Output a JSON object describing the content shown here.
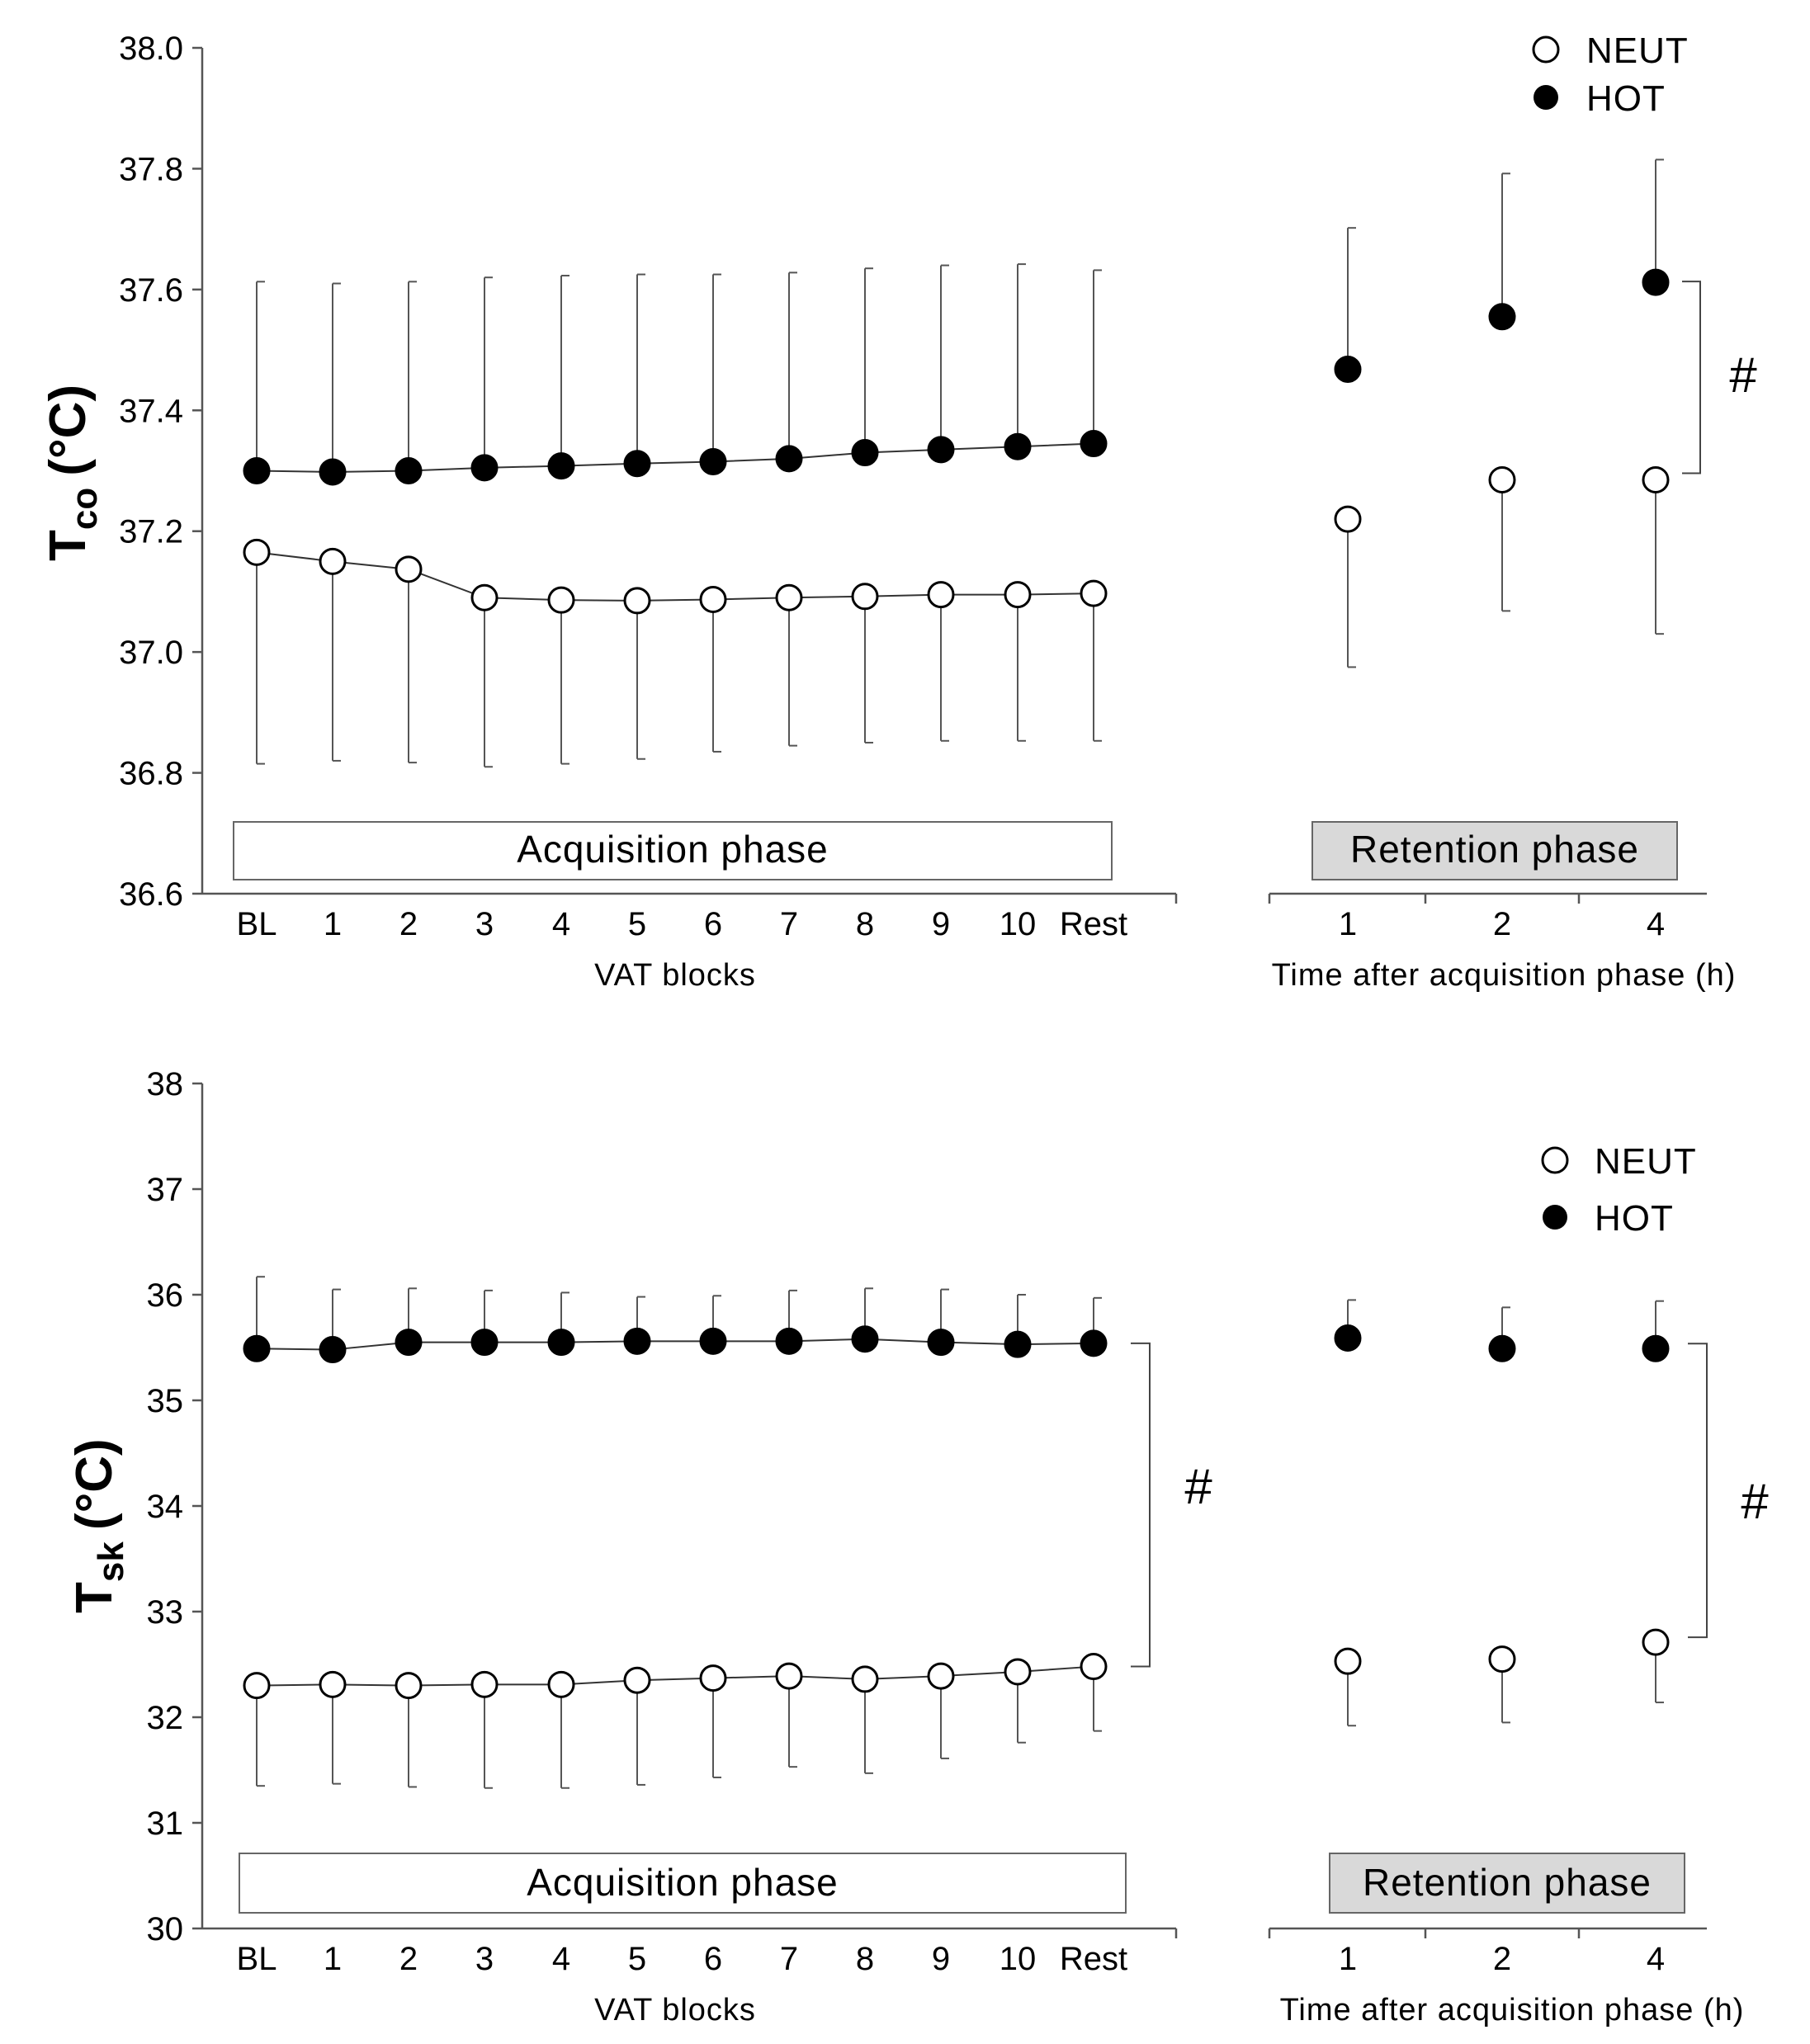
{
  "legend": {
    "neut": "NEUT",
    "hot": "HOT"
  },
  "phases": {
    "acquisition": "Acquisition phase",
    "retention": "Retention phase"
  },
  "colors": {
    "neut_fill": "#ffffff",
    "hot_fill": "#000000",
    "retention_box": "#d9d9d9"
  },
  "chart_data": [
    {
      "type": "line",
      "title": "",
      "ylabel_main": "T",
      "ylabel_sub": "co",
      "ylabel_unit": "(°C)",
      "ylim": [
        36.6,
        38.0
      ],
      "yticks": [
        "36.6",
        "36.8",
        "37.0",
        "37.2",
        "37.4",
        "37.6",
        "37.8",
        "38.0"
      ],
      "significance": "#",
      "acquisition": {
        "xlabel": "VAT blocks",
        "categories": [
          "BL",
          "1",
          "2",
          "3",
          "4",
          "5",
          "6",
          "7",
          "8",
          "9",
          "10",
          "Rest"
        ],
        "series": [
          {
            "name": "NEUT",
            "values": [
              37.165,
              37.15,
              37.137,
              37.09,
              37.086,
              37.085,
              37.087,
              37.09,
              37.092,
              37.095,
              37.095,
              37.097
            ],
            "error_lower": [
              36.815,
              36.82,
              36.817,
              36.81,
              36.815,
              36.823,
              36.835,
              36.845,
              36.85,
              36.853,
              36.853,
              36.853
            ]
          },
          {
            "name": "HOT",
            "values": [
              37.3,
              37.298,
              37.3,
              37.305,
              37.308,
              37.312,
              37.315,
              37.32,
              37.33,
              37.335,
              37.34,
              37.345
            ],
            "error_upper": [
              37.613,
              37.61,
              37.613,
              37.62,
              37.623,
              37.625,
              37.625,
              37.628,
              37.635,
              37.64,
              37.642,
              37.632
            ]
          }
        ]
      },
      "retention": {
        "xlabel": "Time after acquisition phase (h)",
        "categories": [
          "1",
          "2",
          "4"
        ],
        "series": [
          {
            "name": "NEUT",
            "values": [
              37.22,
              37.285,
              37.285
            ],
            "error_lower": [
              36.975,
              37.068,
              37.03
            ]
          },
          {
            "name": "HOT",
            "values": [
              37.468,
              37.555,
              37.612
            ],
            "error_upper": [
              37.702,
              37.792,
              37.815
            ]
          }
        ]
      }
    },
    {
      "type": "line",
      "title": "",
      "ylabel_main": "T",
      "ylabel_sub": "sk",
      "ylabel_unit": "(°C)",
      "ylim": [
        30,
        38
      ],
      "yticks": [
        "30",
        "31",
        "32",
        "33",
        "34",
        "35",
        "36",
        "37",
        "38"
      ],
      "significance_acquisition": "#",
      "significance_retention": "#",
      "acquisition": {
        "xlabel": "VAT blocks",
        "categories": [
          "BL",
          "1",
          "2",
          "3",
          "4",
          "5",
          "6",
          "7",
          "8",
          "9",
          "10",
          "Rest"
        ],
        "series": [
          {
            "name": "NEUT",
            "values": [
              32.3,
              32.31,
              32.3,
              32.31,
              32.31,
              32.35,
              32.37,
              32.39,
              32.36,
              32.39,
              32.43,
              32.48
            ],
            "error_lower": [
              31.35,
              31.37,
              31.34,
              31.33,
              31.33,
              31.36,
              31.43,
              31.53,
              31.47,
              31.61,
              31.76,
              31.87
            ]
          },
          {
            "name": "HOT",
            "values": [
              35.49,
              35.48,
              35.55,
              35.55,
              35.55,
              35.56,
              35.56,
              35.56,
              35.58,
              35.55,
              35.53,
              35.54
            ],
            "error_upper": [
              36.17,
              36.05,
              36.06,
              36.04,
              36.02,
              35.98,
              35.99,
              36.04,
              36.06,
              36.05,
              36.0,
              35.97
            ]
          }
        ]
      },
      "retention": {
        "xlabel": "Time after acquisition phase (h)",
        "categories": [
          "1",
          "2",
          "4"
        ],
        "series": [
          {
            "name": "NEUT",
            "values": [
              32.53,
              32.55,
              32.71
            ],
            "error_lower": [
              31.92,
              31.95,
              32.14
            ]
          },
          {
            "name": "HOT",
            "values": [
              35.59,
              35.49,
              35.49
            ],
            "error_upper": [
              35.95,
              35.88,
              35.94
            ]
          }
        ]
      }
    }
  ]
}
